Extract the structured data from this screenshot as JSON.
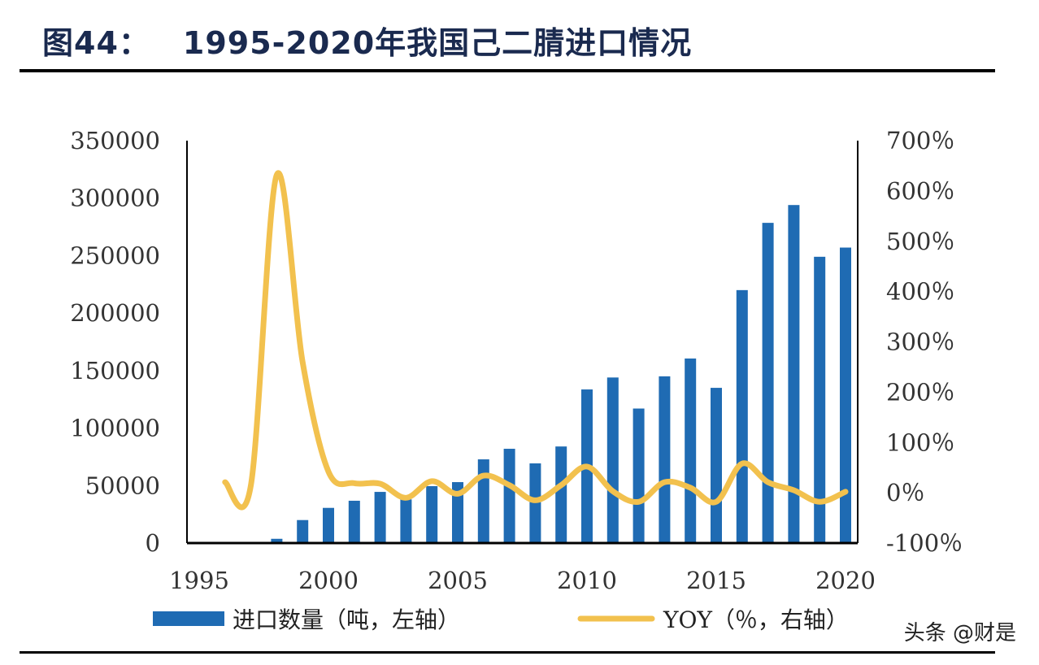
{
  "title": {
    "number": "图44：",
    "text": "1995-2020年我国己二腈进口情况"
  },
  "watermark": "头条 @财是",
  "chart_data": {
    "type": "bar+line",
    "x_ticks": [
      "1995",
      "2000",
      "2005",
      "2010",
      "2015",
      "2020"
    ],
    "xlim": [
      1995,
      2020
    ],
    "y_left": {
      "lim": [
        0,
        350000
      ],
      "ticks": [
        "0",
        "50000",
        "100000",
        "150000",
        "200000",
        "250000",
        "300000",
        "350000"
      ]
    },
    "y_right": {
      "lim": [
        -100,
        700
      ],
      "ticks": [
        "-100％",
        "0％",
        "100％",
        "200％",
        "300％",
        "400％",
        "500％",
        "600％",
        "700％"
      ]
    },
    "series": [
      {
        "name": "进口数量（吨，左轴）",
        "type": "bar",
        "axis": "left",
        "color": "#1f6bb3",
        "x": [
          1998,
          1999,
          2000,
          2001,
          2002,
          2003,
          2004,
          2005,
          2006,
          2007,
          2008,
          2009,
          2010,
          2011,
          2012,
          2013,
          2014,
          2015,
          2016,
          2017,
          2018,
          2019,
          2020
        ],
        "values": [
          3700,
          20000,
          30600,
          36800,
          44500,
          38000,
          49500,
          53000,
          72800,
          82000,
          69300,
          84000,
          133600,
          144000,
          117000,
          145000,
          160500,
          135000,
          220000,
          278500,
          294000,
          249000,
          257000
        ]
      },
      {
        "name": "YOY（％，右轴）",
        "type": "line",
        "axis": "right",
        "color": "#f2c14e",
        "x": [
          1996,
          1997,
          1998,
          1999,
          2000,
          2001,
          2002,
          2003,
          2004,
          2005,
          2006,
          2007,
          2008,
          2009,
          2010,
          2011,
          2012,
          2013,
          2014,
          2015,
          2016,
          2017,
          2018,
          2019,
          2020
        ],
        "values": [
          21,
          15,
          632,
          260,
          42,
          19,
          18,
          -10,
          23,
          -2,
          34,
          15,
          -15,
          15,
          52,
          3,
          -18,
          21,
          10,
          -18,
          58,
          21,
          5,
          -18,
          2
        ]
      }
    ],
    "legend_position": "bottom"
  }
}
